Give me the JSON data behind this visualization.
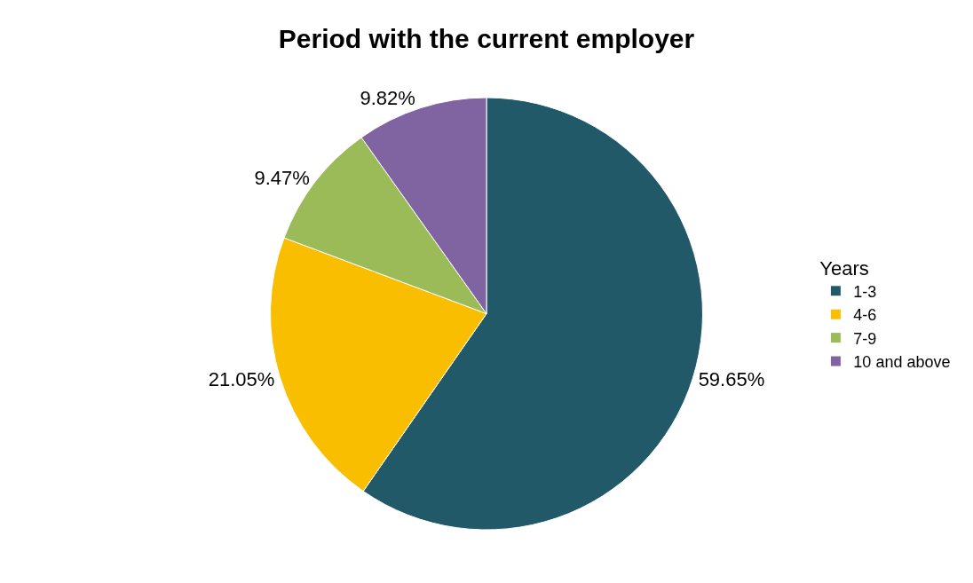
{
  "chart_data": {
    "type": "pie",
    "title": "Period with the current employer",
    "legend_title": "Years",
    "legend": "right",
    "categories": [
      "1-3",
      "4-6",
      "7-9",
      "10 and above"
    ],
    "values": [
      59.65,
      21.05,
      9.47,
      9.82
    ],
    "value_labels": [
      "59.65%",
      "21.05%",
      "9.47%",
      "9.82%"
    ],
    "colors": [
      "#215968",
      "#f9be00",
      "#9bbb59",
      "#8064a2"
    ]
  }
}
